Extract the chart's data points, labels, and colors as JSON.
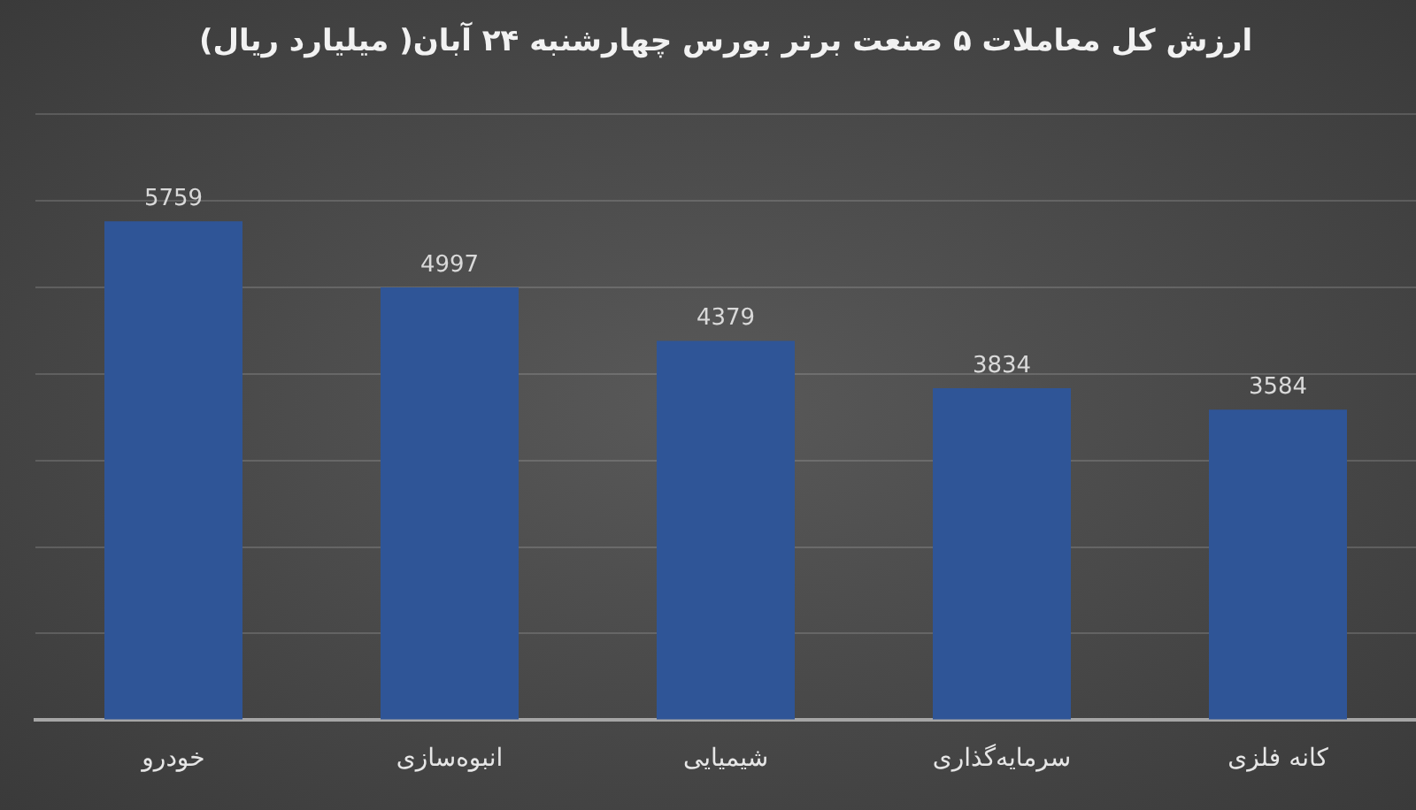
{
  "chart_data": {
    "type": "bar",
    "title": "ارزش کل معاملات ۵ صنعت برتر بورس چهارشنبه ۲۴ آبان( میلیارد ریال)",
    "categories": [
      "خودرو",
      "انبوه‌سازی",
      "شیمیایی",
      "سرمایه‌گذاری",
      "کانه فلزی"
    ],
    "values": [
      5759,
      4997,
      4379,
      3834,
      3584
    ],
    "color": "#2f5597",
    "ylim": [
      0,
      7000
    ],
    "yticks": [
      {
        "value": 0,
        "label": null
      },
      {
        "value": 1000,
        "label": null
      },
      {
        "value": 2000,
        "label": null
      },
      {
        "value": 3000,
        "label": null
      },
      {
        "value": 4000,
        "label": null
      },
      {
        "value": 5000,
        "label": null
      },
      {
        "value": 6000,
        "label": null
      },
      {
        "value": 7000,
        "label": null
      }
    ],
    "tick_labels": "x",
    "grid": "y",
    "data_labels": true,
    "legend": false
  }
}
